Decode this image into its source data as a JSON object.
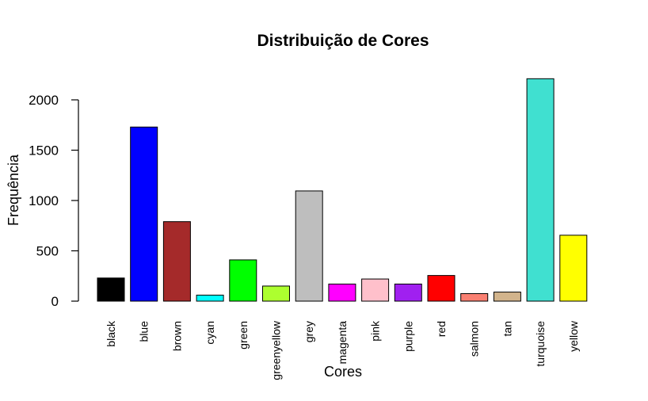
{
  "chart_data": {
    "type": "bar",
    "title": "Distribuição de Cores",
    "xlabel": "Cores",
    "ylabel": "Frequência",
    "ylim": [
      0,
      2000
    ],
    "yticks": [
      0,
      500,
      1000,
      1500,
      2000
    ],
    "grid": false,
    "categories": [
      "black",
      "blue",
      "brown",
      "cyan",
      "green",
      "greenyellow",
      "grey",
      "magenta",
      "pink",
      "purple",
      "red",
      "salmon",
      "tan",
      "turquoise",
      "yellow"
    ],
    "values": [
      230,
      1730,
      790,
      60,
      410,
      150,
      1095,
      170,
      220,
      170,
      255,
      75,
      90,
      2210,
      655
    ],
    "colors": [
      "#000000",
      "#0000FF",
      "#A52A2A",
      "#00FFFF",
      "#00FF00",
      "#ADFF2F",
      "#BEBEBE",
      "#FF00FF",
      "#FFC0CB",
      "#A020F0",
      "#FF0000",
      "#FA8072",
      "#D2B48C",
      "#40E0D0",
      "#FFFF00"
    ]
  }
}
